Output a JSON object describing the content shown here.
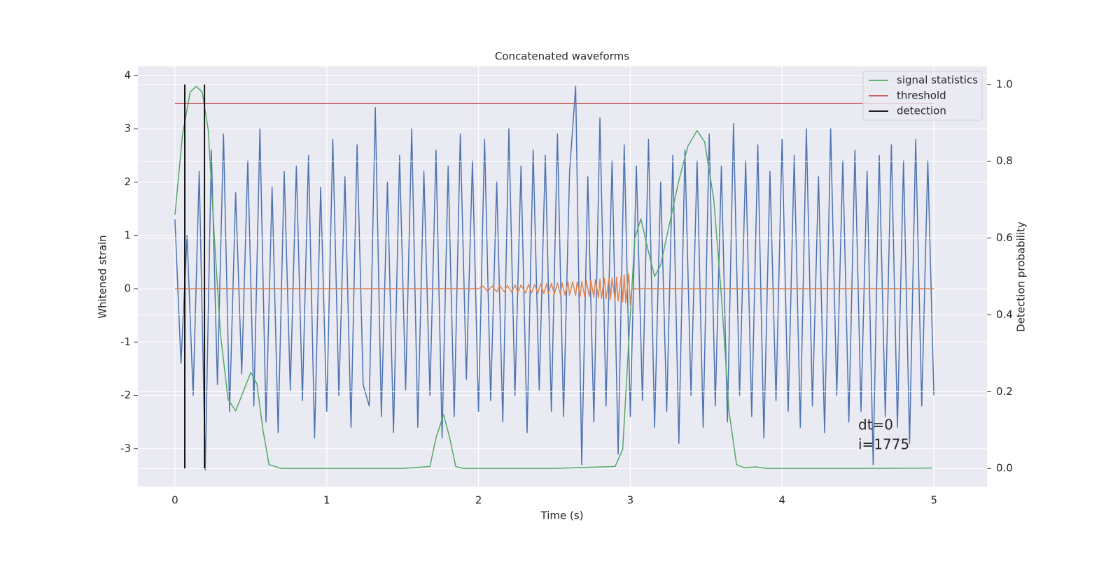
{
  "chart_data": {
    "type": "line",
    "title": "Concatenated waveforms",
    "x_label": "Time (s)",
    "y_label": "Whitened strain",
    "y2_label": "Detection probability",
    "xlim": [
      -0.244,
      5.35
    ],
    "ylim": [
      -3.71,
      4.17
    ],
    "y2lim": [
      -0.047,
      1.047
    ],
    "xticks": [
      0,
      1,
      2,
      3,
      4,
      5
    ],
    "yticks": [
      -3,
      -2,
      -1,
      0,
      1,
      2,
      3,
      4
    ],
    "y2ticks": [
      {
        "value": 0,
        "label": "0.0"
      },
      0.2,
      0.4,
      0.6,
      0.8,
      {
        "value": 1,
        "label": "1.0"
      }
    ],
    "grid": true,
    "legend_position": "upper right",
    "strain": {
      "color": "#4c72b0",
      "x": [
        0,
        0.04,
        0.08,
        0.12,
        0.16,
        0.2,
        0.24,
        0.28,
        0.32,
        0.36,
        0.4,
        0.44,
        0.48,
        0.52,
        0.56,
        0.6,
        0.64,
        0.68,
        0.72,
        0.76,
        0.8,
        0.84,
        0.88,
        0.92,
        0.96,
        1,
        1.04,
        1.08,
        1.12,
        1.16,
        1.2,
        1.24,
        1.28,
        1.32,
        1.36,
        1.4,
        1.44,
        1.48,
        1.52,
        1.56,
        1.6,
        1.64,
        1.68,
        1.72,
        1.76,
        1.8,
        1.84,
        1.88,
        1.92,
        1.96,
        2,
        2.04,
        2.08,
        2.12,
        2.16,
        2.2,
        2.24,
        2.28,
        2.32,
        2.36,
        2.4,
        2.44,
        2.48,
        2.52,
        2.56,
        2.6,
        2.64,
        2.68,
        2.72,
        2.76,
        2.8,
        2.84,
        2.88,
        2.92,
        2.96,
        3,
        3.04,
        3.08,
        3.12,
        3.16,
        3.2,
        3.24,
        3.28,
        3.32,
        3.36,
        3.4,
        3.44,
        3.48,
        3.52,
        3.56,
        3.6,
        3.64,
        3.68,
        3.72,
        3.76,
        3.8,
        3.84,
        3.88,
        3.92,
        3.96,
        4,
        4.04,
        4.08,
        4.12,
        4.16,
        4.2,
        4.24,
        4.28,
        4.32,
        4.36,
        4.4,
        4.44,
        4.48,
        4.52,
        4.56,
        4.6,
        4.64,
        4.68,
        4.72,
        4.76,
        4.8,
        4.84,
        4.88,
        4.92,
        4.96,
        5
      ],
      "values": [
        1.3,
        -1.4,
        1.0,
        -2.0,
        2.2,
        -3.4,
        2.6,
        -1.8,
        2.9,
        -2.3,
        1.8,
        -1.6,
        2.4,
        -2.2,
        3.0,
        -2.5,
        1.9,
        -2.7,
        2.2,
        -1.9,
        2.3,
        -2.1,
        2.5,
        -2.8,
        1.9,
        -2.3,
        2.8,
        -2.0,
        2.1,
        -2.6,
        2.7,
        -1.8,
        -2.2,
        3.4,
        -2.4,
        2.0,
        -2.7,
        2.5,
        -1.9,
        3.0,
        -2.6,
        2.2,
        -2.0,
        2.6,
        -2.8,
        2.3,
        -2.4,
        2.9,
        -1.7,
        2.4,
        -2.3,
        2.8,
        -2.1,
        2.0,
        -2.5,
        3.0,
        -2.0,
        2.3,
        -2.7,
        2.6,
        -1.9,
        2.5,
        -2.3,
        2.9,
        -2.4,
        2.2,
        3.8,
        -3.3,
        2.1,
        -2.5,
        3.2,
        -2.2,
        2.4,
        -3.1,
        2.7,
        -2.4,
        2.3,
        -2.1,
        2.8,
        -2.6,
        2.0,
        -2.3,
        2.5,
        -2.9,
        2.6,
        -2.0,
        2.4,
        -2.6,
        2.9,
        -2.2,
        2.3,
        -2.5,
        3.1,
        -2.0,
        2.4,
        -2.4,
        2.7,
        -2.8,
        2.2,
        -2.1,
        2.8,
        -2.3,
        2.5,
        -2.6,
        3.0,
        -2.2,
        2.1,
        -2.7,
        3.0,
        -2.0,
        2.4,
        -2.5,
        2.6,
        -2.3,
        2.2,
        -3.3,
        2.5,
        -2.4,
        2.7,
        -2.6,
        2.4,
        -2.9,
        2.8,
        -2.2,
        2.4,
        -2.0
      ]
    },
    "waveform": {
      "color": "#dd8452",
      "x": [
        0,
        2,
        2.03,
        2.06,
        2.09,
        2.12,
        2.14,
        2.17,
        2.19,
        2.22,
        2.24,
        2.26,
        2.28,
        2.31,
        2.33,
        2.35,
        2.37,
        2.39,
        2.41,
        2.43,
        2.45,
        2.46,
        2.48,
        2.5,
        2.52,
        2.54,
        2.55,
        2.57,
        2.59,
        2.6,
        2.62,
        2.64,
        2.65,
        2.67,
        2.68,
        2.7,
        2.71,
        2.73,
        2.74,
        2.76,
        2.77,
        2.79,
        2.8,
        2.81,
        2.83,
        2.84,
        2.86,
        2.87,
        2.88,
        2.9,
        2.91,
        2.92,
        2.94,
        2.95,
        2.96,
        2.97,
        2.99,
        3.0,
        3.01,
        5
      ],
      "values": [
        0,
        0,
        0.05,
        -0.05,
        0.05,
        -0.06,
        0.06,
        -0.06,
        0.06,
        -0.07,
        0.07,
        -0.07,
        0.07,
        -0.08,
        0.08,
        -0.08,
        0.08,
        -0.09,
        0.09,
        -0.09,
        0.1,
        -0.1,
        0.1,
        -0.1,
        0.11,
        -0.11,
        0.11,
        -0.12,
        0.12,
        -0.12,
        0.13,
        -0.13,
        0.13,
        -0.14,
        0.14,
        -0.15,
        0.15,
        -0.15,
        0.16,
        -0.16,
        0.17,
        -0.17,
        0.18,
        -0.18,
        0.19,
        -0.19,
        0.2,
        -0.2,
        0.21,
        -0.22,
        0.22,
        -0.23,
        0.24,
        -0.25,
        0.26,
        -0.27,
        0.28,
        -0.3,
        0,
        0
      ]
    },
    "series": [
      {
        "name": "signal statistics",
        "color": "#55a868",
        "axis": "y2",
        "x": [
          0,
          0.05,
          0.1,
          0.14,
          0.18,
          0.22,
          0.26,
          0.3,
          0.35,
          0.4,
          0.45,
          0.5,
          0.54,
          0.58,
          0.62,
          0.7,
          1.0,
          1.5,
          1.68,
          1.72,
          1.77,
          1.81,
          1.85,
          1.9,
          2.5,
          2.9,
          2.95,
          3.0,
          3.03,
          3.07,
          3.11,
          3.16,
          3.2,
          3.26,
          3.32,
          3.38,
          3.44,
          3.49,
          3.55,
          3.6,
          3.65,
          3.7,
          3.75,
          3.83,
          3.9,
          4.5,
          4.99
        ],
        "values": [
          0.66,
          0.87,
          0.98,
          0.995,
          0.98,
          0.88,
          0.6,
          0.35,
          0.18,
          0.15,
          0.2,
          0.25,
          0.22,
          0.1,
          0.01,
          0,
          0,
          0,
          0.005,
          0.08,
          0.14,
          0.08,
          0.005,
          0,
          0,
          0.005,
          0.05,
          0.4,
          0.6,
          0.65,
          0.58,
          0.5,
          0.53,
          0.64,
          0.75,
          0.84,
          0.88,
          0.85,
          0.7,
          0.45,
          0.15,
          0.01,
          0.002,
          0.004,
          0,
          0,
          0.001
        ]
      },
      {
        "name": "threshold",
        "color": "#c44e52",
        "axis": "y2",
        "x": [
          0,
          5
        ],
        "values": [
          0.95,
          0.95
        ]
      },
      {
        "name": "detection",
        "color": "#000000",
        "axis": "y2",
        "x": [
          0.065,
          0.195
        ],
        "ymin": 0,
        "ymax": 1
      }
    ],
    "annotations": [
      "dt=0",
      "i=1775"
    ]
  }
}
